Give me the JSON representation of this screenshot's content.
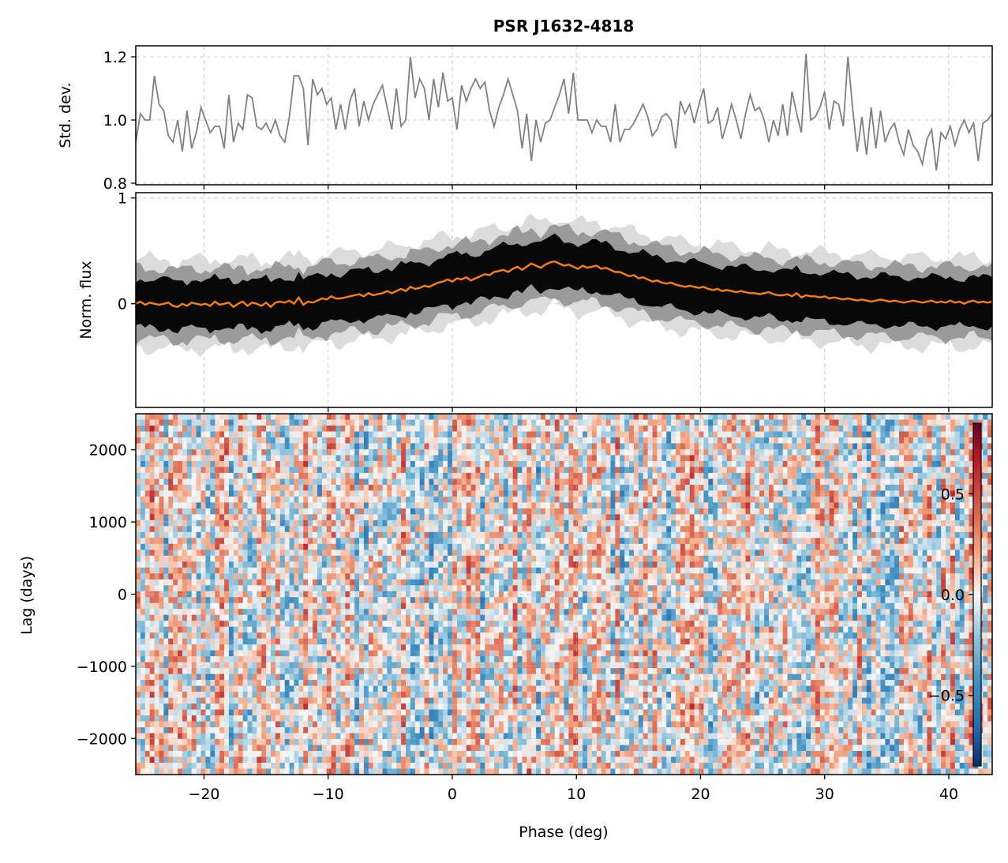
{
  "chart_data": [
    {
      "type": "line",
      "panel": "std",
      "title": "PSR J1632-4818",
      "ylabel": "Std. dev.",
      "xlim": [
        -25.5,
        43.5
      ],
      "ylim": [
        0.795,
        1.235
      ],
      "yticks": [
        0.8,
        1.0,
        1.2
      ],
      "ytick_labels": [
        "0.8",
        "1.0",
        "1.2"
      ],
      "grid": true,
      "series_color": "#808080",
      "x_start": -25.5,
      "x_step": 0.375,
      "values": [
        0.93,
        1.02,
        1.0,
        1.0,
        1.14,
        1.05,
        1.03,
        0.95,
        0.93,
        1.0,
        0.9,
        1.03,
        0.91,
        0.96,
        1.04,
        1.0,
        0.96,
        0.98,
        0.98,
        0.91,
        1.08,
        0.93,
        0.99,
        0.97,
        1.08,
        1.07,
        0.98,
        0.97,
        0.99,
        0.96,
        1.0,
        0.95,
        0.93,
        1.01,
        1.14,
        1.14,
        1.1,
        0.92,
        1.13,
        1.08,
        1.1,
        1.05,
        1.07,
        0.97,
        1.05,
        0.97,
        1.06,
        1.1,
        0.98,
        1.06,
        1.0,
        1.05,
        1.08,
        1.11,
        1.04,
        0.97,
        1.1,
        0.98,
        1.0,
        1.2,
        1.07,
        1.13,
        1.1,
        1.0,
        1.13,
        1.04,
        1.15,
        1.06,
        1.07,
        0.97,
        1.11,
        1.06,
        1.1,
        1.13,
        1.1,
        1.12,
        1.03,
        0.98,
        1.04,
        1.08,
        1.13,
        1.08,
        1.03,
        0.91,
        1.02,
        0.87,
        1.0,
        0.93,
        0.99,
        1.0,
        1.04,
        1.08,
        1.13,
        1.02,
        1.15,
        1.0,
        1.0,
        1.0,
        0.96,
        1.0,
        0.98,
        0.98,
        0.93,
        1.05,
        0.93,
        0.97,
        0.97,
        0.99,
        1.02,
        1.05,
        1.01,
        0.95,
        0.97,
        1.01,
        1.02,
        1.0,
        0.91,
        1.06,
        1.02,
        1.05,
        0.99,
        1.05,
        1.1,
        0.99,
        1.0,
        1.04,
        0.94,
        0.99,
        1.05,
        1.0,
        0.94,
        1.02,
        1.08,
        1.03,
        1.04,
        1.0,
        0.93,
        1.0,
        0.95,
        1.05,
        0.95,
        1.09,
        1.02,
        0.96,
        1.21,
        1.0,
        1.01,
        1.04,
        1.09,
        0.97,
        1.06,
        1.05,
        0.98,
        1.2,
        1.04,
        0.9,
        1.01,
        0.89,
        1.04,
        0.91,
        1.03,
        0.93,
        0.97,
        0.99,
        0.93,
        0.89,
        0.97,
        0.92,
        0.9,
        0.86,
        0.94,
        0.97,
        0.84,
        0.96,
        0.94,
        0.98,
        0.92,
        0.97,
        1.0,
        0.96,
        0.99,
        0.87,
        0.99,
        1.0,
        1.02,
        1.05,
        1.08,
        1.1,
        1.0,
        1.03,
        0.99,
        1.01,
        1.01,
        1.01,
        0.92,
        1.02,
        1.0,
        1.02,
        1.02,
        1.01,
        0.92,
        0.85,
        0.91,
        1.05
      ]
    },
    {
      "type": "line",
      "panel": "flux",
      "ylabel": "Norm. flux",
      "xlim": [
        -25.5,
        43.5
      ],
      "ylim": [
        -0.98,
        1.05
      ],
      "yticks": [
        0,
        1
      ],
      "ytick_labels": [
        "0",
        "1"
      ],
      "grid": true,
      "series_color": "#ff7f0e",
      "band_color": "#000000",
      "x_start": -25.5,
      "x_step": 0.375,
      "mean_profile": [
        0.0,
        0.02,
        -0.01,
        0.01,
        0.0,
        -0.01,
        0.0,
        0.01,
        -0.02,
        -0.03,
        0.0,
        -0.02,
        0.01,
        0.0,
        -0.01,
        0.0,
        -0.02,
        0.02,
        -0.01,
        0.0,
        0.01,
        -0.03,
        0.0,
        0.02,
        -0.02,
        0.01,
        0.0,
        -0.02,
        0.01,
        -0.03,
        0.01,
        0.02,
        0.01,
        0.03,
        0.0,
        0.06,
        -0.01,
        0.02,
        0.01,
        0.03,
        0.05,
        0.04,
        0.07,
        0.05,
        0.05,
        0.06,
        0.07,
        0.08,
        0.09,
        0.07,
        0.1,
        0.08,
        0.09,
        0.1,
        0.12,
        0.1,
        0.12,
        0.14,
        0.12,
        0.16,
        0.14,
        0.15,
        0.17,
        0.16,
        0.18,
        0.2,
        0.21,
        0.23,
        0.21,
        0.24,
        0.23,
        0.25,
        0.22,
        0.24,
        0.26,
        0.28,
        0.27,
        0.3,
        0.31,
        0.32,
        0.3,
        0.33,
        0.35,
        0.32,
        0.35,
        0.38,
        0.36,
        0.34,
        0.37,
        0.39,
        0.4,
        0.38,
        0.36,
        0.37,
        0.35,
        0.33,
        0.36,
        0.34,
        0.35,
        0.36,
        0.33,
        0.34,
        0.32,
        0.3,
        0.3,
        0.28,
        0.26,
        0.27,
        0.24,
        0.25,
        0.23,
        0.21,
        0.22,
        0.2,
        0.19,
        0.2,
        0.18,
        0.17,
        0.16,
        0.17,
        0.16,
        0.15,
        0.16,
        0.14,
        0.13,
        0.14,
        0.12,
        0.13,
        0.12,
        0.11,
        0.12,
        0.11,
        0.1,
        0.1,
        0.09,
        0.1,
        0.11,
        0.09,
        0.08,
        0.08,
        0.09,
        0.07,
        0.1,
        0.06,
        0.08,
        0.07,
        0.07,
        0.06,
        0.07,
        0.05,
        0.06,
        0.05,
        0.04,
        0.05,
        0.04,
        0.03,
        0.04,
        0.03,
        0.02,
        0.03,
        0.04,
        0.03,
        0.02,
        0.03,
        0.02,
        0.01,
        0.02,
        0.03,
        0.02,
        0.01,
        0.02,
        0.03,
        0.01,
        0.02,
        0.01,
        0.03,
        0.01,
        0.02,
        0.0,
        0.02,
        0.03,
        0.01,
        0.02,
        0.01,
        0.02,
        0.0,
        0.01,
        0.03,
        0.02,
        0.01,
        0.0,
        0.02,
        0.01,
        0.02,
        0.03,
        0.01,
        0.0,
        0.02,
        0.01
      ],
      "band_half_width": 0.23,
      "outer_half_width": 0.42
    },
    {
      "type": "heatmap",
      "panel": "correlation",
      "xlabel": "Phase (deg)",
      "ylabel": "Lag (days)",
      "xlim": [
        -25.5,
        43.5
      ],
      "ylim": [
        -2500,
        2500
      ],
      "xticks": [
        -20,
        -10,
        0,
        10,
        20,
        30,
        40
      ],
      "xtick_labels": [
        "−20",
        "−10",
        "0",
        "10",
        "20",
        "30",
        "40"
      ],
      "yticks": [
        2000,
        1000,
        0,
        -1000,
        -2000
      ],
      "ytick_labels": [
        "2000",
        "1000",
        "0",
        "−1000",
        "−2000"
      ],
      "colormap": "RdBu_r",
      "color_range": [
        -0.85,
        0.85
      ],
      "colorbar_ticks": [
        0.5,
        0.0,
        -0.5
      ],
      "colorbar_tick_labels": [
        "0.5",
        "0.0",
        "−0.5"
      ],
      "grid": true
    }
  ]
}
